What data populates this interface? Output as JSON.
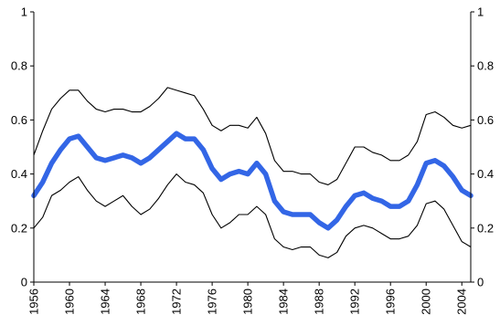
{
  "chart_data": {
    "type": "line",
    "title": "",
    "xlabel": "",
    "ylabel": "",
    "xlim": [
      1956,
      2005
    ],
    "ylim": [
      0,
      1
    ],
    "x_ticks": [
      1956,
      1960,
      1964,
      1968,
      1972,
      1976,
      1980,
      1984,
      1988,
      1992,
      1996,
      2000,
      2004
    ],
    "x_tick_labels": [
      "1956",
      "1960",
      "1964",
      "1968",
      "1972",
      "1976",
      "1980",
      "1984",
      "1988",
      "1992",
      "1996",
      "2000",
      "2004"
    ],
    "y_ticks": [
      0,
      0.2,
      0.4,
      0.6,
      0.8,
      1
    ],
    "y_tick_labels_left": [
      "0",
      "0.2",
      "0.4",
      "0.6",
      "0.8",
      "1"
    ],
    "y_tick_labels_right": [
      "0",
      "0.2",
      "0.4",
      "0.6",
      "0.8",
      "1"
    ],
    "grid": false,
    "legend": "none",
    "x": [
      1956,
      1957,
      1958,
      1959,
      1960,
      1961,
      1962,
      1963,
      1964,
      1965,
      1966,
      1967,
      1968,
      1969,
      1970,
      1971,
      1972,
      1973,
      1974,
      1975,
      1976,
      1977,
      1978,
      1979,
      1980,
      1981,
      1982,
      1983,
      1984,
      1985,
      1986,
      1987,
      1988,
      1989,
      1990,
      1991,
      1992,
      1993,
      1994,
      1995,
      1996,
      1997,
      1998,
      1999,
      2000,
      2001,
      2002,
      2003,
      2004,
      2005
    ],
    "series": [
      {
        "role": "upper",
        "color": "#000000",
        "values": [
          0.47,
          0.56,
          0.64,
          0.68,
          0.71,
          0.71,
          0.67,
          0.64,
          0.63,
          0.64,
          0.64,
          0.63,
          0.63,
          0.65,
          0.68,
          0.72,
          0.71,
          0.7,
          0.69,
          0.64,
          0.58,
          0.56,
          0.58,
          0.58,
          0.57,
          0.61,
          0.55,
          0.45,
          0.41,
          0.41,
          0.4,
          0.4,
          0.37,
          0.36,
          0.38,
          0.44,
          0.5,
          0.5,
          0.48,
          0.47,
          0.45,
          0.45,
          0.47,
          0.52,
          0.62,
          0.63,
          0.61,
          0.58,
          0.57,
          0.58
        ]
      },
      {
        "role": "estimate",
        "color": "#3366e6",
        "values": [
          0.32,
          0.37,
          0.44,
          0.49,
          0.53,
          0.54,
          0.5,
          0.46,
          0.45,
          0.46,
          0.47,
          0.46,
          0.44,
          0.46,
          0.49,
          0.52,
          0.55,
          0.53,
          0.53,
          0.49,
          0.42,
          0.38,
          0.4,
          0.41,
          0.4,
          0.44,
          0.4,
          0.3,
          0.26,
          0.25,
          0.25,
          0.25,
          0.22,
          0.2,
          0.23,
          0.28,
          0.32,
          0.33,
          0.31,
          0.3,
          0.28,
          0.28,
          0.3,
          0.36,
          0.44,
          0.45,
          0.43,
          0.39,
          0.34,
          0.32
        ]
      },
      {
        "role": "lower",
        "color": "#000000",
        "values": [
          0.2,
          0.24,
          0.32,
          0.34,
          0.37,
          0.39,
          0.34,
          0.3,
          0.28,
          0.3,
          0.32,
          0.28,
          0.25,
          0.27,
          0.31,
          0.36,
          0.4,
          0.37,
          0.36,
          0.33,
          0.25,
          0.2,
          0.22,
          0.25,
          0.25,
          0.28,
          0.25,
          0.16,
          0.13,
          0.12,
          0.13,
          0.13,
          0.1,
          0.09,
          0.11,
          0.17,
          0.2,
          0.21,
          0.2,
          0.18,
          0.16,
          0.16,
          0.17,
          0.21,
          0.29,
          0.3,
          0.27,
          0.21,
          0.15,
          0.13
        ]
      }
    ]
  }
}
